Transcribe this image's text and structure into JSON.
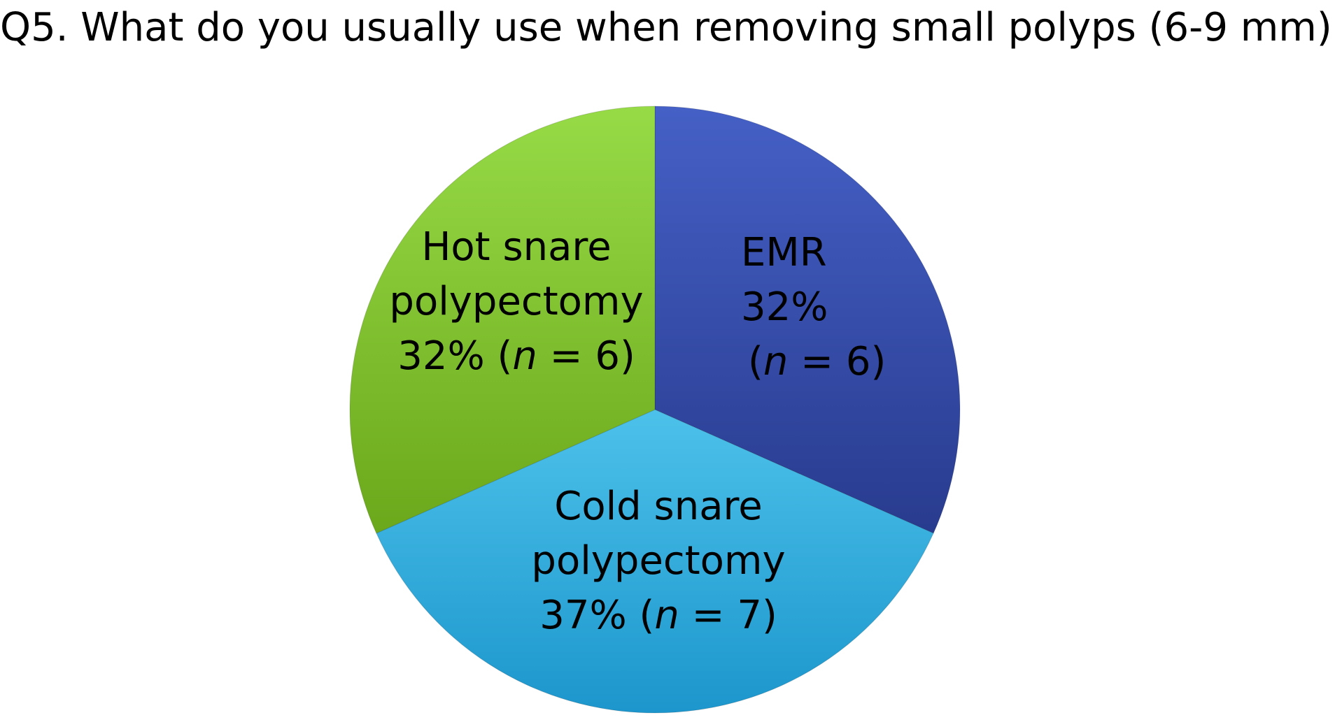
{
  "chart_data": {
    "type": "pie",
    "title": "Q5. What do you usually use when removing small polyps (6-9 mm) ?",
    "slices": [
      {
        "label_lines": [
          "EMR"
        ],
        "percent_text": "32%",
        "n": 6,
        "value": 32,
        "color": "#3A4FB0"
      },
      {
        "label_lines": [
          "Cold snare",
          "polypectomy"
        ],
        "percent_text": "37%",
        "n": 7,
        "value": 37,
        "color": "#33AEDD"
      },
      {
        "label_lines": [
          "Hot snare",
          "polypectomy"
        ],
        "percent_text": "32%",
        "n": 6,
        "value": 32,
        "color": "#80C22A"
      }
    ],
    "legend": "none",
    "grid": false
  }
}
